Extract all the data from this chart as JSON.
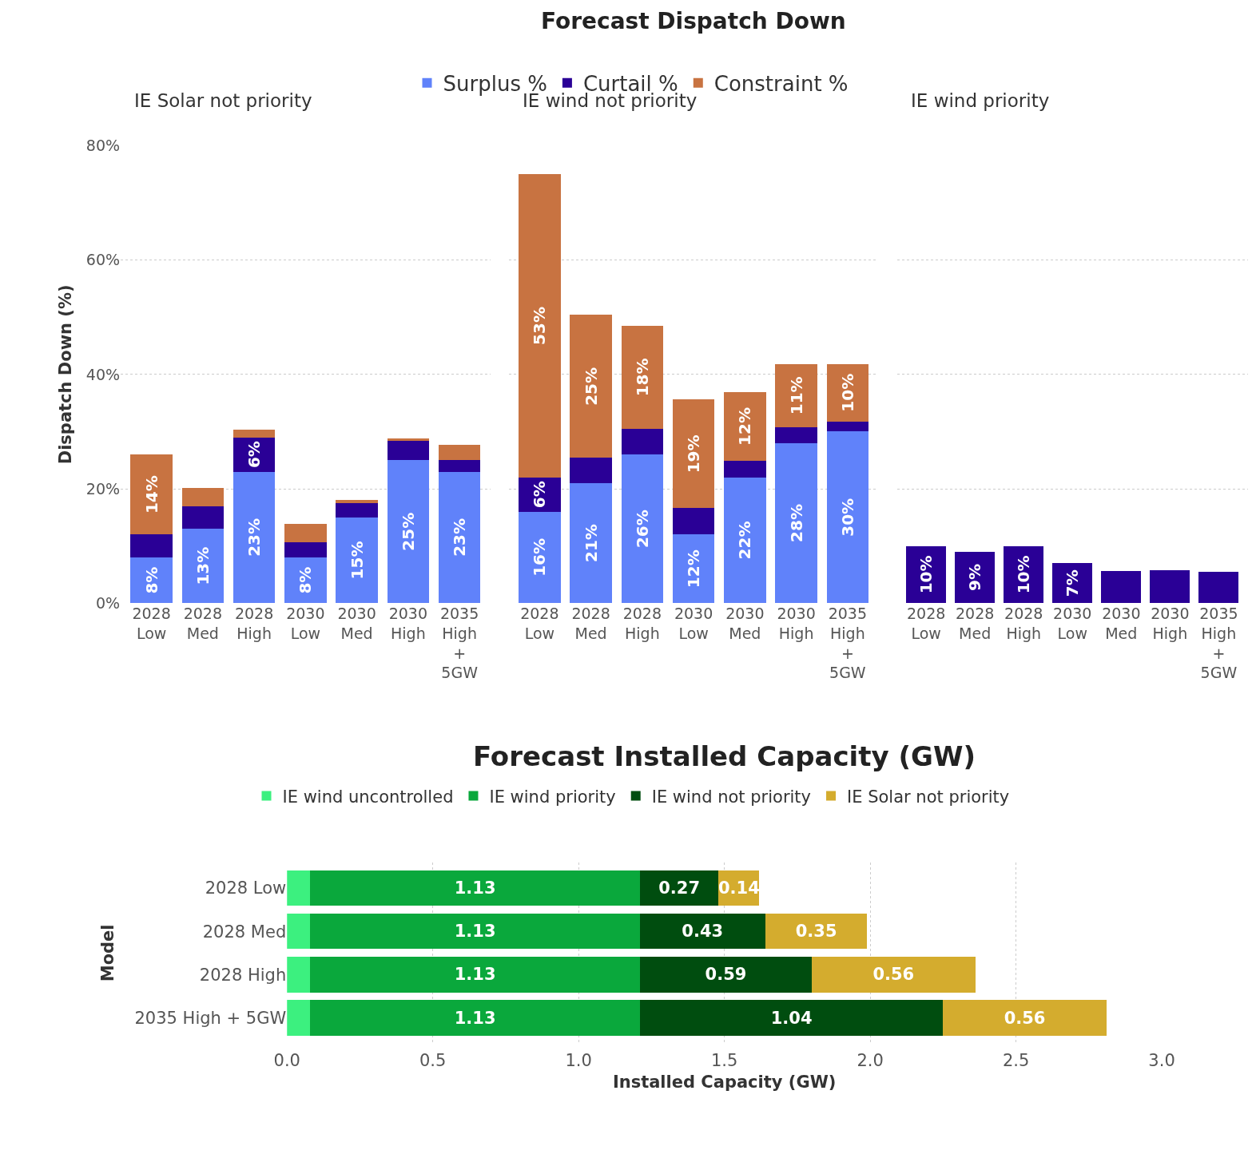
{
  "chart_data": [
    {
      "type": "bar",
      "subtitle": "IE Solar not priority",
      "ylabel": "Dispatch Down (%)",
      "stacked": true,
      "legend": "top",
      "grid": "y",
      "categories": [
        "2028 Low",
        "2028 Med",
        "2028 High",
        "2030 Low",
        "2030 Med",
        "2030 High",
        "2035 High + 5GW"
      ],
      "ylim": [
        0,
        80
      ],
      "yticks": [
        {
          "value": 0,
          "label": "0%"
        },
        {
          "value": 20,
          "label": "20%"
        },
        {
          "value": 40,
          "label": "40%"
        },
        {
          "value": 60,
          "label": "60%"
        },
        {
          "value": 80,
          "label": "80%"
        }
      ],
      "series": [
        {
          "name": "Surplus %",
          "color": "#6082fa",
          "values": [
            8,
            13,
            23,
            8,
            15,
            25,
            23
          ],
          "value_labels": [
            "8%",
            "13%",
            "23%",
            "8%",
            "15%",
            "25%",
            "23%"
          ]
        },
        {
          "name": "Curtail %",
          "color": "#2a0096",
          "values": [
            4,
            4,
            6,
            2.6,
            2.5,
            3.4,
            2
          ],
          "value_labels": [
            null,
            null,
            "6%",
            null,
            null,
            null,
            null
          ]
        },
        {
          "name": "Constraint %",
          "color": "#c87341",
          "values": [
            14,
            3.2,
            1.3,
            3.3,
            0.6,
            0.4,
            2.7
          ],
          "value_labels": [
            "14%",
            null,
            null,
            null,
            null,
            null,
            null
          ]
        }
      ]
    },
    {
      "type": "bar",
      "title": "Forecast Dispatch Down",
      "subtitle": "IE wind not priority",
      "stacked": true,
      "grid": "y",
      "tick_labels": "x",
      "categories": [
        "2028 Low",
        "2028 Med",
        "2028 High",
        "2030 Low",
        "2030 Med",
        "2030 High",
        "2035 High + 5GW"
      ],
      "ylim": [
        0,
        80
      ],
      "yticks": [
        {
          "value": 0,
          "label": null
        },
        {
          "value": 20,
          "label": null
        },
        {
          "value": 40,
          "label": null
        },
        {
          "value": 60,
          "label": null
        },
        {
          "value": 80,
          "label": null
        }
      ],
      "series": [
        {
          "color": "#6082fa",
          "values": [
            16,
            21,
            26,
            12,
            22,
            28,
            30
          ],
          "value_labels": [
            "16%",
            "21%",
            "26%",
            "12%",
            "22%",
            "28%",
            "30%"
          ]
        },
        {
          "color": "#2a0096",
          "values": [
            6,
            4.4,
            4.5,
            4.6,
            2.9,
            2.8,
            1.8
          ],
          "value_labels": [
            "6%",
            null,
            null,
            null,
            null,
            null,
            null
          ]
        },
        {
          "color": "#c87341",
          "values": [
            53,
            25,
            18,
            19,
            12,
            11,
            10
          ],
          "value_labels": [
            "53%",
            "25%",
            "18%",
            "19%",
            "12%",
            "11%",
            "10%"
          ]
        }
      ]
    },
    {
      "type": "bar",
      "subtitle": "IE wind priority",
      "stacked": true,
      "grid": "y",
      "tick_labels": "x",
      "categories": [
        "2028 Low",
        "2028 Med",
        "2028 High",
        "2030 Low",
        "2030 Med",
        "2030 High",
        "2035 High + 5GW"
      ],
      "ylim": [
        0,
        80
      ],
      "yticks": [
        {
          "value": 0,
          "label": null
        },
        {
          "value": 20,
          "label": null
        },
        {
          "value": 40,
          "label": null
        },
        {
          "value": 60,
          "label": null
        },
        {
          "value": 80,
          "label": null
        }
      ],
      "series": [
        {
          "color": "#2a0096",
          "values": [
            10,
            9,
            10,
            7,
            5.6,
            5.8,
            5.5
          ],
          "value_labels": [
            "10%",
            "9%",
            "10%",
            "7%",
            null,
            null,
            null
          ]
        }
      ]
    },
    {
      "type": "bar",
      "title": "Forecast Installed Capacity (GW)",
      "xlabel": "Installed Capacity (GW)",
      "ylabel": "Model",
      "stacked": true,
      "orientation": "horizontal",
      "legend": "top",
      "grid": "x",
      "categories": [
        "2028 Low",
        "2028 Med",
        "2028 High",
        "2035 High + 5GW"
      ],
      "xlim": [
        0,
        3
      ],
      "xticks": [
        {
          "value": 0,
          "label": "0.0"
        },
        {
          "value": 0.5,
          "label": "0.5"
        },
        {
          "value": 1,
          "label": "1.0"
        },
        {
          "value": 1.5,
          "label": "1.5"
        },
        {
          "value": 2,
          "label": "2.0"
        },
        {
          "value": 2.5,
          "label": "2.5"
        },
        {
          "value": 3,
          "label": "3.0"
        }
      ],
      "series": [
        {
          "name": "IE wind uncontrolled",
          "color": "#3cf07f",
          "values": [
            0.08,
            0.08,
            0.08,
            0.08
          ],
          "value_labels": [
            null,
            null,
            null,
            null
          ]
        },
        {
          "name": "IE wind priority",
          "color": "#0aa83c",
          "values": [
            1.13,
            1.13,
            1.13,
            1.13
          ],
          "value_labels": [
            "1.13",
            "1.13",
            "1.13",
            "1.13"
          ]
        },
        {
          "name": "IE wind not priority",
          "color": "#004d0f",
          "values": [
            0.27,
            0.43,
            0.59,
            1.04
          ],
          "value_labels": [
            "0.27",
            "0.43",
            "0.59",
            "1.04"
          ]
        },
        {
          "name": "IE Solar not priority",
          "color": "#d4ac2e",
          "values": [
            0.14,
            0.35,
            0.56,
            0.56
          ],
          "value_labels": [
            "0.14",
            "0.35",
            "0.56",
            "0.56"
          ]
        }
      ]
    }
  ]
}
